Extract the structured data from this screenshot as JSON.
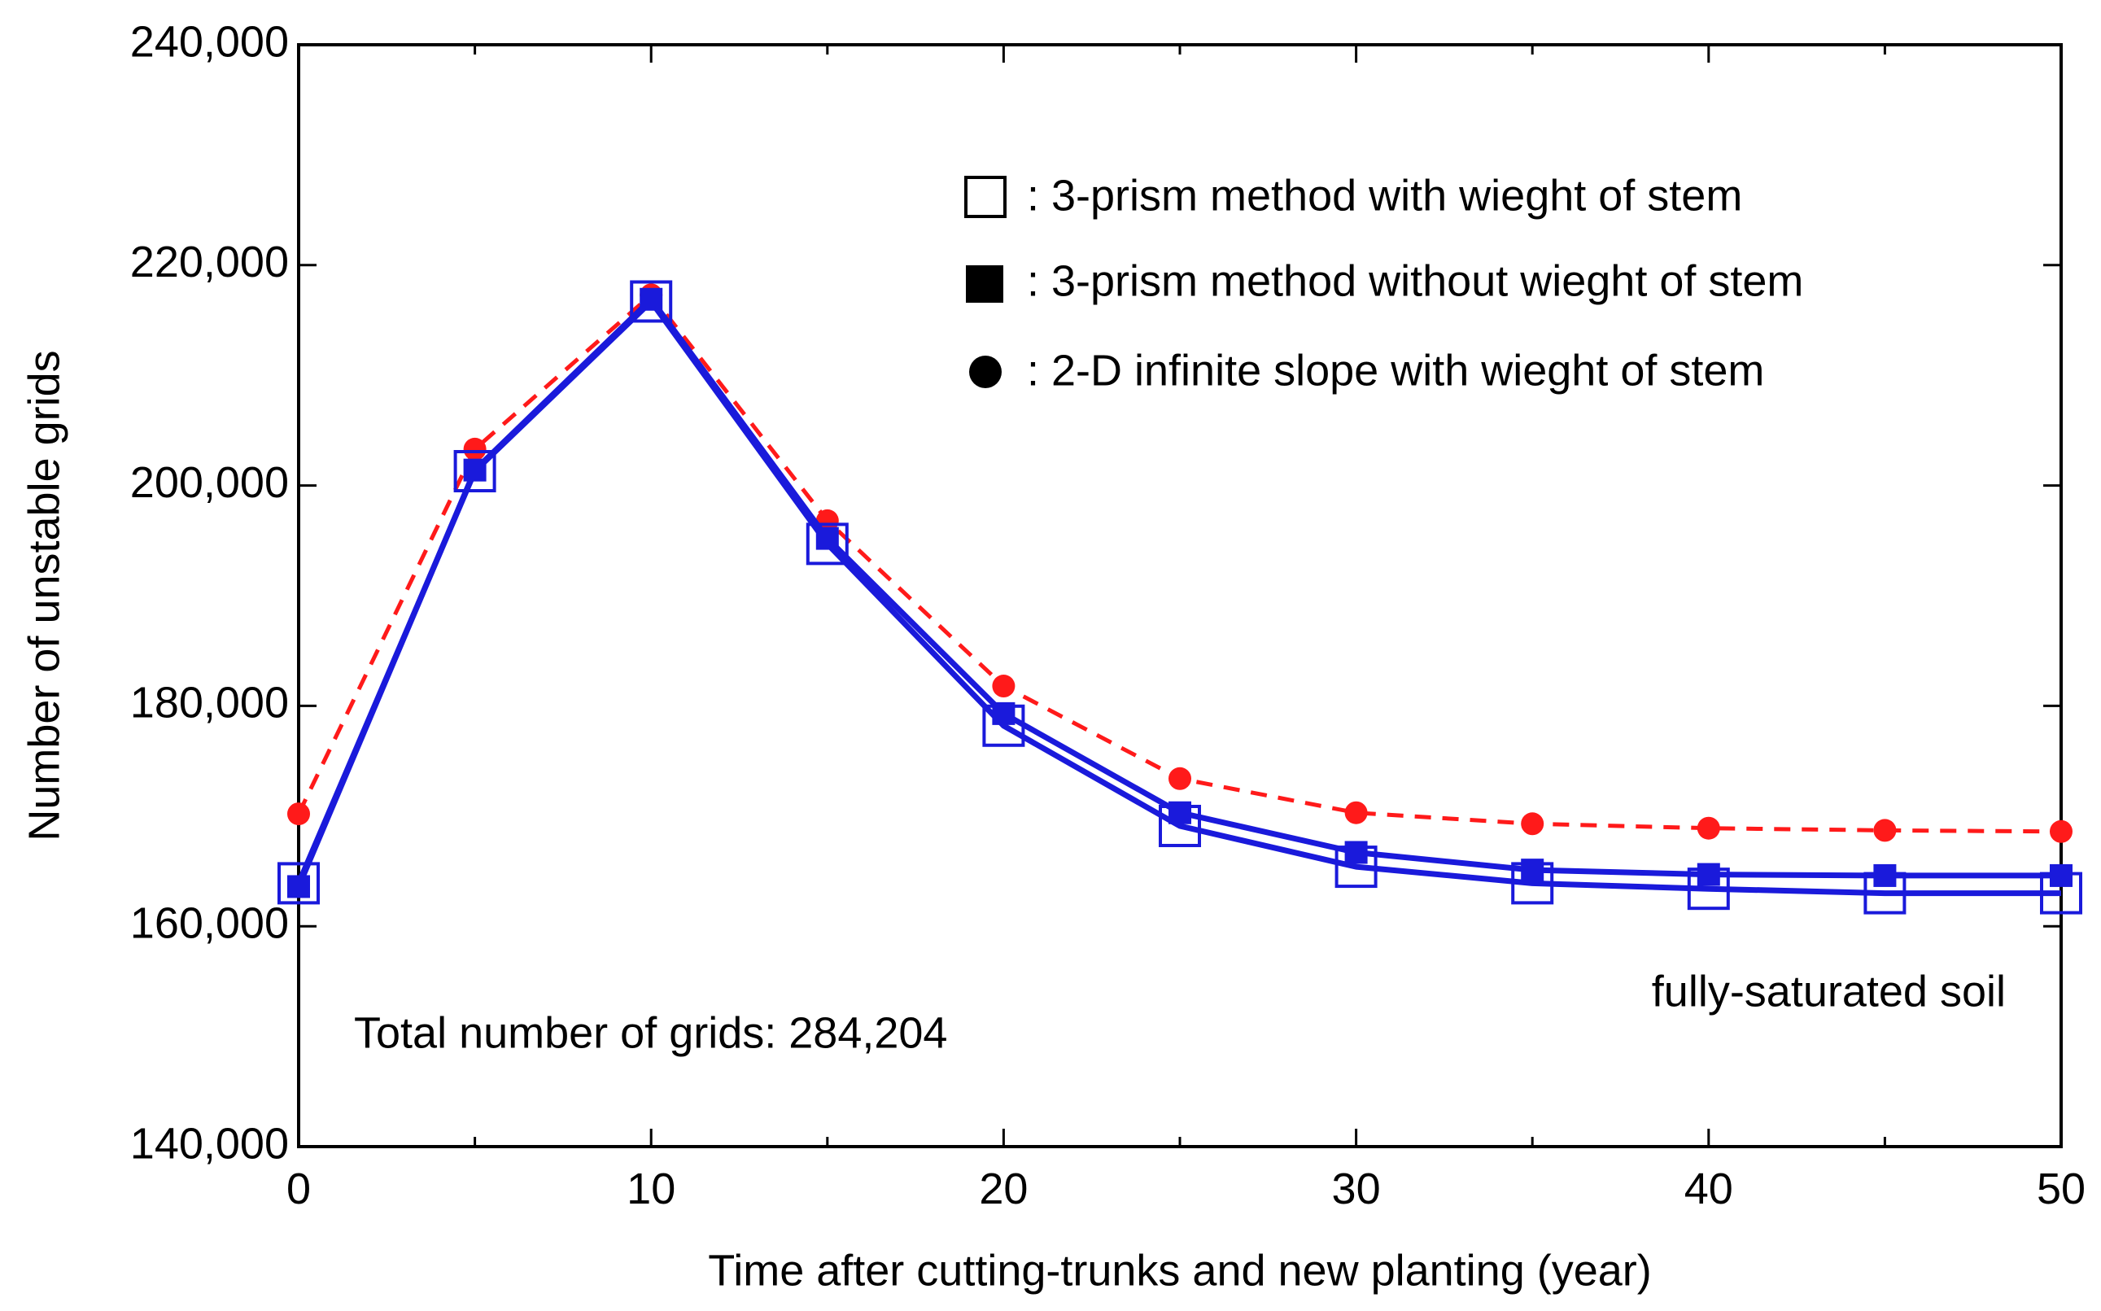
{
  "chart_data": {
    "type": "line",
    "title": "",
    "xlabel": "Time after cutting-trunks and new planting (year)",
    "ylabel": "Number of unstable grids",
    "xlim": [
      0,
      50
    ],
    "ylim": [
      140000,
      240000
    ],
    "x_ticks": [
      0,
      10,
      20,
      30,
      40,
      50
    ],
    "x_tick_labels": [
      "0",
      "10",
      "20",
      "30",
      "40",
      "50"
    ],
    "y_ticks": [
      140000,
      160000,
      180000,
      200000,
      220000,
      240000
    ],
    "y_tick_labels": [
      "140,000",
      "160,000",
      "180,000",
      "200,000",
      "220,000",
      "240,000"
    ],
    "grid": false,
    "legend_position": "top-right",
    "x": [
      0,
      5,
      10,
      15,
      20,
      25,
      30,
      35,
      40,
      45,
      50
    ],
    "series": [
      {
        "name": ": 3-prism method with wieght of stem",
        "marker": "open-square",
        "line": "solid",
        "color": "#1a1adb",
        "values": [
          163900,
          201300,
          216700,
          194700,
          178200,
          169100,
          165400,
          163900,
          163400,
          163000,
          163000
        ]
      },
      {
        "name": ": 3-prism method without wieght of stem",
        "marker": "filled-square",
        "line": "solid",
        "color": "#1a1adb",
        "values": [
          163600,
          201400,
          216900,
          195200,
          179300,
          170300,
          166700,
          165100,
          164700,
          164600,
          164600
        ]
      },
      {
        "name": ": 2-D infinite slope with wieght of stem",
        "marker": "filled-circle",
        "line": "dashed",
        "color": "#ff1a1a",
        "values": [
          170200,
          203300,
          217300,
          196800,
          181800,
          173400,
          170300,
          169300,
          168900,
          168700,
          168600
        ]
      }
    ],
    "annotations": [
      "Total number of grids: 284,204",
      "fully-saturated soil"
    ]
  }
}
